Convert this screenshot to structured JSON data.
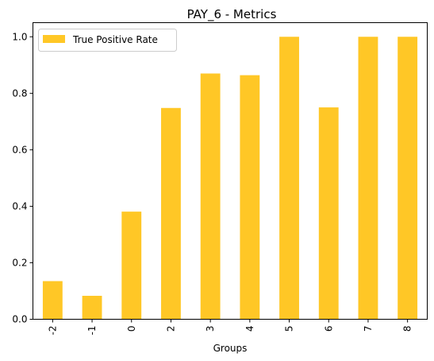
{
  "chart_data": {
    "type": "bar",
    "title": "PAY_6 - Metrics",
    "xlabel": "Groups",
    "ylabel": "",
    "categories": [
      "-2",
      "-1",
      "0",
      "2",
      "3",
      "4",
      "5",
      "6",
      "7",
      "8"
    ],
    "series": [
      {
        "name": "True Positive Rate",
        "color": "#FFC726",
        "values": [
          0.135,
          0.083,
          0.381,
          0.748,
          0.87,
          0.864,
          1.0,
          0.75,
          1.0,
          1.0
        ]
      }
    ],
    "ylim": [
      0,
      1.05
    ],
    "yticks": [
      "0.0",
      "0.2",
      "0.4",
      "0.6",
      "0.8",
      "1.0"
    ],
    "grid": false,
    "legend": "top-left",
    "x_tick_rotation": "vertical"
  }
}
